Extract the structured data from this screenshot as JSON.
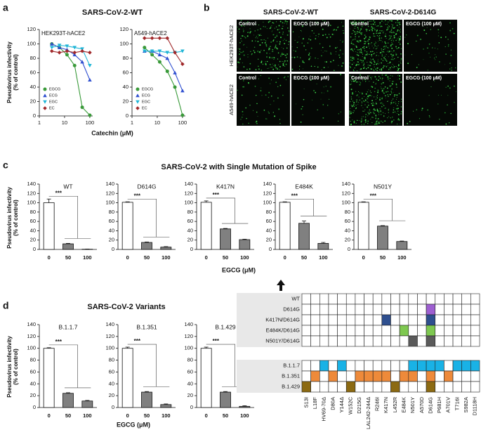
{
  "panel_labels": [
    "a",
    "b",
    "c",
    "d"
  ],
  "panel_a": {
    "title": "SARS-CoV-2-WT",
    "ylabel": [
      "Pseudovirus infectivity",
      "(% of control)"
    ],
    "xlabel": "Catechin (μM)"
  },
  "panel_b": {
    "columns": [
      "SARS-CoV-2-WT",
      "SARS-CoV-2-D614G"
    ],
    "rows": [
      "HEK293T-hACE2",
      "A549-hACE2"
    ],
    "tiles": [
      "Control",
      "EGCG (100 μM)"
    ]
  },
  "panel_c": {
    "title": "SARS-CoV-2 with Single Mutation of Spike",
    "ylabel": [
      "Pseudovirus infectivity",
      "(% of control)"
    ],
    "xlabel": "EGCG (μM)"
  },
  "panel_d": {
    "title": "SARS-CoV-2 Variants",
    "ylabel": [
      "Pseudovirus infectivity",
      "(% of control)"
    ],
    "xlabel": "EGCG (μM)"
  },
  "mutation_table": {
    "columns": [
      "S13I",
      "L18F",
      "HV69-70Δ",
      "D80A",
      "Y144Δ",
      "W152C",
      "D215G",
      "LAL242-244Δ",
      "R246I",
      "K417N",
      "L452R",
      "E484K",
      "N501Y",
      "A570D",
      "D614G",
      "P681H",
      "A701V",
      "T716I",
      "S982A",
      "D1118H"
    ],
    "groups": [
      [
        {
          "label": "WT",
          "cells": {}
        },
        {
          "label": "D614G",
          "cells": {
            "D614G": "#9e5fd1"
          }
        },
        {
          "label": "K417N/D614G",
          "cells": {
            "K417N": "#2e4f8f",
            "D614G": "#2e4f8f"
          }
        },
        {
          "label": "E484K/D614G",
          "cells": {
            "E484K": "#7ec850",
            "D614G": "#7ec850"
          }
        },
        {
          "label": "N501Y/D614G",
          "cells": {
            "N501Y": "#5a5a5a",
            "D614G": "#5a5a5a"
          }
        }
      ],
      [
        {
          "label": "B.1.1.7",
          "cells": {
            "HV69-70Δ": "#19b2e6",
            "Y144Δ": "#19b2e6",
            "N501Y": "#19b2e6",
            "A570D": "#19b2e6",
            "D614G": "#19b2e6",
            "P681H": "#19b2e6",
            "T716I": "#19b2e6",
            "S982A": "#19b2e6",
            "D1118H": "#19b2e6"
          }
        },
        {
          "label": "B.1.351",
          "cells": {
            "L18F": "#ee8a3a",
            "D80A": "#ee8a3a",
            "D215G": "#ee8a3a",
            "LAL242-244Δ": "#ee8a3a",
            "R246I": "#ee8a3a",
            "K417N": "#ee8a3a",
            "E484K": "#ee8a3a",
            "N501Y": "#ee8a3a",
            "D614G": "#ee8a3a",
            "A701V": "#ee8a3a"
          }
        },
        {
          "label": "B.1.429",
          "cells": {
            "S13I": "#8c6a12",
            "W152C": "#8c6a12",
            "L452R": "#8c6a12",
            "D614G": "#8c6a12"
          }
        }
      ]
    ]
  },
  "chart_data": [
    {
      "type": "line",
      "title": "HEK293T-hACE2",
      "x": [
        3.125,
        6.25,
        12.5,
        25,
        50,
        100
      ],
      "xscale": "log",
      "xlim": [
        1,
        130
      ],
      "xticks": [
        1,
        10,
        100
      ],
      "ylim": [
        0,
        120
      ],
      "yticks": [
        0,
        20,
        40,
        60,
        80,
        100,
        120
      ],
      "legend": "lower left",
      "series": [
        {
          "name": "EGCG",
          "color": "#3a9a3a",
          "marker": "circle",
          "values": [
            100,
            95,
            85,
            70,
            12,
            1
          ]
        },
        {
          "name": "ECG",
          "color": "#2f4fd0",
          "marker": "triangle-up",
          "values": [
            100,
            95,
            92,
            85,
            75,
            50
          ]
        },
        {
          "name": "EGC",
          "color": "#1fb5d6",
          "marker": "triangle-down",
          "values": [
            95,
            98,
            97,
            95,
            93,
            70
          ]
        },
        {
          "name": "EC",
          "color": "#a0282a",
          "marker": "diamond",
          "values": [
            90,
            88,
            90,
            88,
            90,
            88
          ]
        }
      ]
    },
    {
      "type": "line",
      "title": "A549-hACE2",
      "x": [
        3.125,
        6.25,
        12.5,
        25,
        50,
        100
      ],
      "xscale": "log",
      "xlim": [
        1,
        130
      ],
      "xticks": [
        1,
        10,
        100
      ],
      "ylim": [
        0,
        120
      ],
      "yticks": [
        0,
        20,
        40,
        60,
        80,
        100,
        120
      ],
      "legend": "lower left",
      "series": [
        {
          "name": "EGCG",
          "color": "#3a9a3a",
          "marker": "circle",
          "values": [
            95,
            85,
            75,
            62,
            40,
            1
          ]
        },
        {
          "name": "ECG",
          "color": "#2f4fd0",
          "marker": "triangle-up",
          "values": [
            90,
            90,
            85,
            80,
            60,
            35
          ]
        },
        {
          "name": "EGC",
          "color": "#1fb5d6",
          "marker": "triangle-down",
          "values": [
            90,
            90,
            90,
            88,
            88,
            90
          ]
        },
        {
          "name": "EC",
          "color": "#a0282a",
          "marker": "diamond",
          "values": [
            108,
            108,
            108,
            108,
            88,
            72
          ]
        }
      ]
    },
    {
      "type": "bar",
      "title": "WT",
      "categories": [
        "0",
        "50",
        "100"
      ],
      "values": [
        100,
        12,
        0.5
      ],
      "errors": [
        8,
        1,
        0.3
      ],
      "colors": [
        "#ffffff",
        "#808080",
        "#808080"
      ],
      "annotation": "***",
      "ylim": [
        0,
        140
      ],
      "yticks": [
        0,
        20,
        40,
        60,
        80,
        100,
        120,
        140
      ]
    },
    {
      "type": "bar",
      "title": "D614G",
      "categories": [
        "0",
        "50",
        "100"
      ],
      "values": [
        101,
        15,
        5
      ],
      "errors": [
        1,
        1,
        1
      ],
      "colors": [
        "#ffffff",
        "#808080",
        "#808080"
      ],
      "annotation": "***",
      "ylim": [
        0,
        140
      ],
      "yticks": [
        0,
        20,
        40,
        60,
        80,
        100,
        120,
        140
      ]
    },
    {
      "type": "bar",
      "title": "K417N",
      "categories": [
        "0",
        "50",
        "100"
      ],
      "values": [
        101,
        44,
        21
      ],
      "errors": [
        3,
        1,
        1
      ],
      "colors": [
        "#ffffff",
        "#808080",
        "#808080"
      ],
      "annotation": "***",
      "ylim": [
        0,
        140
      ],
      "yticks": [
        0,
        20,
        40,
        60,
        80,
        100,
        120,
        140
      ]
    },
    {
      "type": "bar",
      "title": "E484K",
      "categories": [
        "0",
        "50",
        "100"
      ],
      "values": [
        101,
        56,
        13
      ],
      "errors": [
        1,
        5,
        2
      ],
      "colors": [
        "#ffffff",
        "#808080",
        "#808080"
      ],
      "annotation": "***",
      "ylim": [
        0,
        140
      ],
      "yticks": [
        0,
        20,
        40,
        60,
        80,
        100,
        120,
        140
      ]
    },
    {
      "type": "bar",
      "title": "N501Y",
      "categories": [
        "0",
        "50",
        "100"
      ],
      "values": [
        101,
        50,
        17
      ],
      "errors": [
        1,
        1,
        1
      ],
      "colors": [
        "#ffffff",
        "#808080",
        "#808080"
      ],
      "annotation": "***",
      "ylim": [
        0,
        140
      ],
      "yticks": [
        0,
        20,
        40,
        60,
        80,
        100,
        120,
        140
      ]
    },
    {
      "type": "bar",
      "title": "B.1.1.7",
      "categories": [
        "0",
        "50",
        "100"
      ],
      "values": [
        100,
        24,
        11
      ],
      "errors": [
        1,
        1,
        1
      ],
      "colors": [
        "#ffffff",
        "#808080",
        "#808080"
      ],
      "annotation": "***",
      "ylim": [
        0,
        140
      ],
      "yticks": [
        0,
        20,
        40,
        60,
        80,
        100,
        120,
        140
      ]
    },
    {
      "type": "bar",
      "title": "B.1.351",
      "categories": [
        "0",
        "50",
        "100"
      ],
      "values": [
        100,
        26,
        5
      ],
      "errors": [
        2,
        1,
        1
      ],
      "colors": [
        "#ffffff",
        "#808080",
        "#808080"
      ],
      "annotation": "***",
      "ylim": [
        0,
        140
      ],
      "yticks": [
        0,
        20,
        40,
        60,
        80,
        100,
        120,
        140
      ]
    },
    {
      "type": "bar",
      "title": "B.1.429",
      "categories": [
        "0",
        "50",
        "100"
      ],
      "values": [
        100,
        26,
        2
      ],
      "errors": [
        2,
        1,
        1
      ],
      "colors": [
        "#ffffff",
        "#808080",
        "#808080"
      ],
      "annotation": "***",
      "ylim": [
        0,
        140
      ],
      "yticks": [
        0,
        20,
        40,
        60,
        80,
        100,
        120,
        140
      ]
    }
  ]
}
